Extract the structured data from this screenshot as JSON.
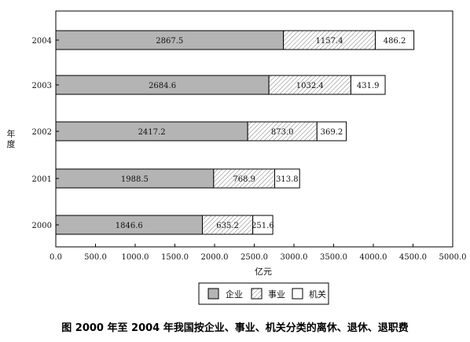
{
  "chart_data": {
    "type": "bar",
    "orientation": "horizontal",
    "stacked": true,
    "title": "图  2000 年至 2004 年我国按企业、事业、机关分类的离休、退休、退职费",
    "xlabel": "亿元",
    "ylabel": "年度",
    "categories": [
      "2004",
      "2003",
      "2002",
      "2001",
      "2000"
    ],
    "series": [
      {
        "name": "企业",
        "values": [
          2867.5,
          2684.6,
          2417.2,
          1988.5,
          1846.6
        ],
        "labels": [
          "2867.5",
          "2684.6",
          "2417.2",
          "1988.5",
          "1846.6"
        ],
        "fill": "gray"
      },
      {
        "name": "事业",
        "values": [
          1157.4,
          1032.4,
          873.0,
          768.9,
          635.2
        ],
        "labels": [
          "1157.4",
          "1032.4",
          "873.0",
          "768.9",
          "635.2"
        ],
        "fill": "hatch"
      },
      {
        "name": "机关",
        "values": [
          486.2,
          431.9,
          369.2,
          313.8,
          251.6
        ],
        "labels": [
          "486.2",
          "431.9",
          "369.2",
          "313.8",
          "251.6"
        ],
        "fill": "white"
      }
    ],
    "xlim": [
      0,
      5000
    ],
    "xticks": [
      0,
      500,
      1000,
      1500,
      2000,
      2500,
      3000,
      3500,
      4000,
      4500,
      5000
    ],
    "xtick_labels": [
      "0.0",
      "500.0",
      "1000.0",
      "1500.0",
      "2000.0",
      "2500.0",
      "3000.0",
      "3500.0",
      "4000.0",
      "4500.0",
      "5000.0"
    ],
    "grid": false,
    "legend_position": "bottom-center"
  },
  "colors": {
    "series_gray": "#b4b4b4",
    "series_white": "#ffffff",
    "stroke": "#000000"
  }
}
